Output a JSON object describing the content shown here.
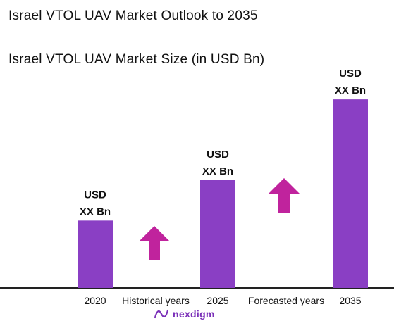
{
  "title": "Israel VTOL UAV Market Outlook to 2035",
  "chart_data": {
    "type": "bar",
    "title": "Israel VTOL UAV Market Size (in USD Bn)",
    "categories": [
      "2020",
      "2025",
      "2035"
    ],
    "values": [
      1.0,
      1.6,
      2.8
    ],
    "data_labels": [
      [
        "USD",
        "XX Bn"
      ],
      [
        "USD",
        "XX Bn"
      ],
      [
        "USD",
        "XX Bn"
      ]
    ],
    "period_labels": [
      "Historical years",
      "Forecasted years"
    ],
    "ylim": [
      0,
      3.0
    ],
    "grid": false,
    "bar_color": "#8a3fc4",
    "arrow_color": "#c0239d"
  },
  "brand": {
    "name": "nexdigm",
    "color": "#7a2fb8"
  }
}
